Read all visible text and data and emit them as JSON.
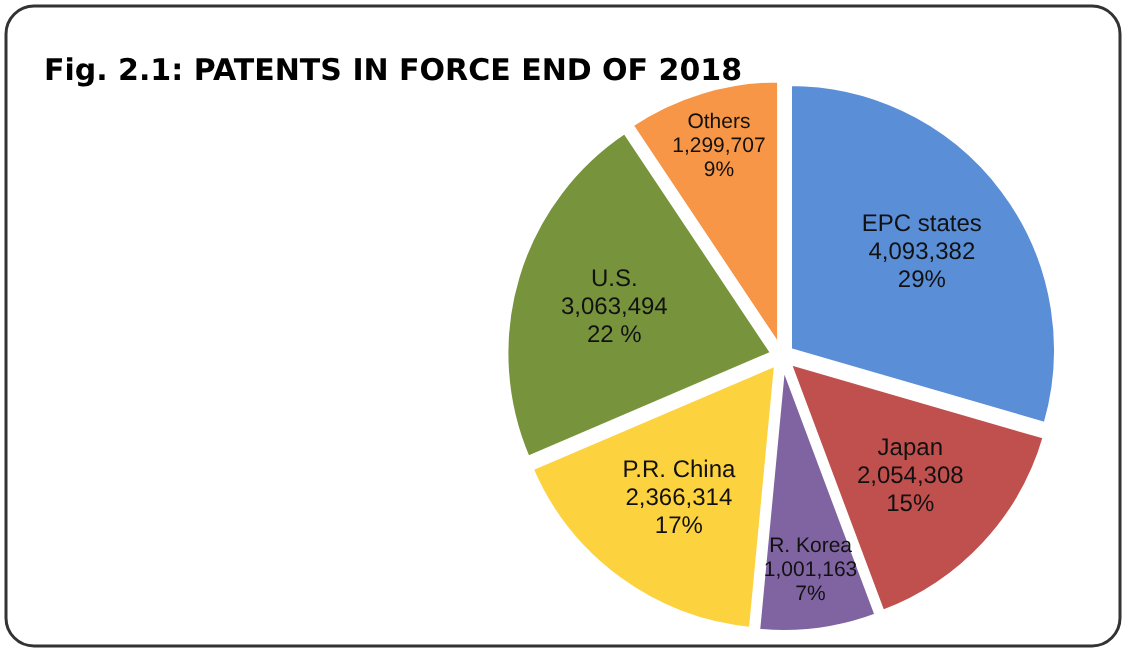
{
  "chart_data": {
    "type": "pie",
    "title": "Fig. 2.1: PATENTS IN FORCE END OF 2018",
    "categories": [
      "EPC states",
      "Japan",
      "R. Korea",
      "P.R. China",
      "U.S.",
      "Others"
    ],
    "values": [
      4093382,
      2054308,
      1001163,
      2366314,
      3063494,
      1299707
    ],
    "value_labels": [
      "4,093,382\n29%",
      "2,054,308\n15%",
      "1,001,163\n7%",
      "2,366,314\n17%",
      "3,063,494\n22 %",
      "1,299,707\n9%"
    ],
    "colors": [
      "#5a8ed6",
      "#c0504d",
      "#8064a2",
      "#fdd23f",
      "#77933c",
      "#f79646"
    ]
  }
}
